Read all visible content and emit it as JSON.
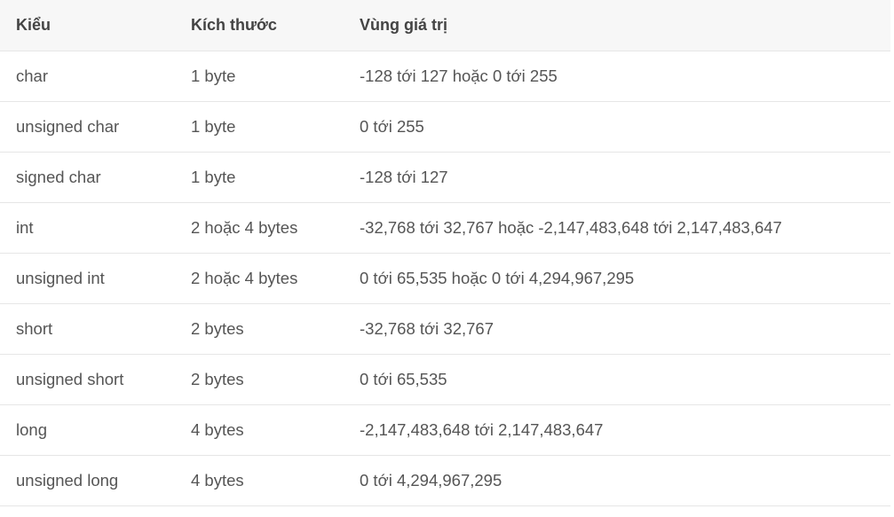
{
  "table": {
    "headers": [
      "Kiểu",
      "Kích thước",
      "Vùng giá trị"
    ],
    "rows": [
      [
        "char",
        "1 byte",
        "-128 tới 127 hoặc 0 tới 255"
      ],
      [
        "unsigned char",
        "1 byte",
        "0 tới 255"
      ],
      [
        "signed char",
        "1 byte",
        "-128 tới 127"
      ],
      [
        "int",
        "2 hoặc 4 bytes",
        "-32,768 tới 32,767 hoặc -2,147,483,648 tới 2,147,483,647"
      ],
      [
        "unsigned int",
        "2 hoặc 4 bytes",
        "0 tới 65,535 hoặc 0 tới 4,294,967,295"
      ],
      [
        "short",
        "2 bytes",
        "-32,768 tới 32,767"
      ],
      [
        "unsigned short",
        "2 bytes",
        "0 tới 65,535"
      ],
      [
        "long",
        "4 bytes",
        "-2,147,483,648 tới 2,147,483,647"
      ],
      [
        "unsigned long",
        "4 bytes",
        "0 tới 4,294,967,295"
      ]
    ]
  }
}
